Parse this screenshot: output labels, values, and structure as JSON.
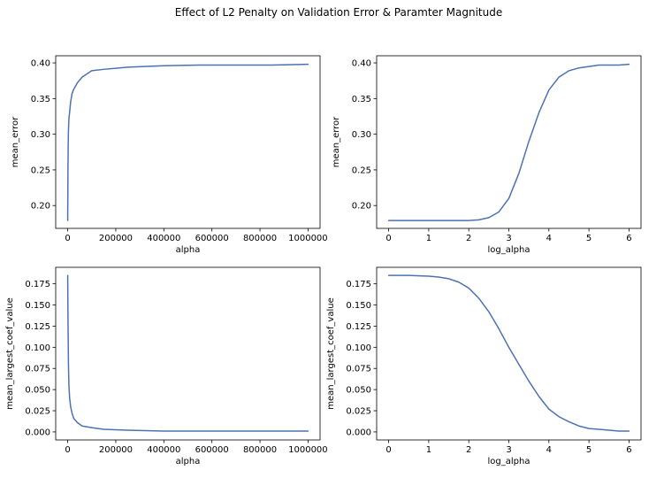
{
  "figure": {
    "suptitle": "Effect of L2 Penalty on Validation Error & Paramter Magnitude"
  },
  "chart_data": [
    {
      "type": "line",
      "xlabel": "alpha",
      "ylabel": "mean_error",
      "xlim": [
        -50000,
        1050000
      ],
      "ylim": [
        0.168,
        0.41
      ],
      "xticks": [
        0,
        200000,
        400000,
        600000,
        800000,
        1000000
      ],
      "xticklabels": [
        "0",
        "200000",
        "400000",
        "600000",
        "800000",
        "1000000"
      ],
      "yticks": [
        0.2,
        0.25,
        0.3,
        0.35,
        0.4
      ],
      "yticklabels": [
        "0.20",
        "0.25",
        "0.30",
        "0.35",
        "0.40"
      ],
      "grid": false,
      "series": [
        {
          "color": "#4c72b0",
          "x": [
            1,
            1000,
            2000,
            3000,
            5000,
            8000,
            12000,
            18000,
            25000,
            40000,
            60000,
            100000,
            150000,
            250000,
            400000,
            550000,
            700000,
            850000,
            1000000
          ],
          "y": [
            0.179,
            0.25,
            0.285,
            0.305,
            0.322,
            0.331,
            0.345,
            0.357,
            0.363,
            0.372,
            0.38,
            0.389,
            0.391,
            0.394,
            0.396,
            0.397,
            0.397,
            0.397,
            0.398
          ]
        }
      ]
    },
    {
      "type": "line",
      "xlabel": "log_alpha",
      "ylabel": "mean_error",
      "xlim": [
        -0.3,
        6.3
      ],
      "ylim": [
        0.168,
        0.41
      ],
      "xticks": [
        0,
        1,
        2,
        3,
        4,
        5,
        6
      ],
      "xticklabels": [
        "0",
        "1",
        "2",
        "3",
        "4",
        "5",
        "6"
      ],
      "yticks": [
        0.2,
        0.25,
        0.3,
        0.35,
        0.4
      ],
      "yticklabels": [
        "0.20",
        "0.25",
        "0.30",
        "0.35",
        "0.40"
      ],
      "grid": false,
      "series": [
        {
          "color": "#4c72b0",
          "x": [
            0,
            0.5,
            1.0,
            1.5,
            2.0,
            2.25,
            2.5,
            2.75,
            3.0,
            3.25,
            3.5,
            3.75,
            4.0,
            4.25,
            4.5,
            4.75,
            5.0,
            5.25,
            5.5,
            5.75,
            6.0
          ],
          "y": [
            0.179,
            0.179,
            0.179,
            0.179,
            0.179,
            0.18,
            0.183,
            0.191,
            0.21,
            0.245,
            0.29,
            0.33,
            0.362,
            0.38,
            0.389,
            0.393,
            0.395,
            0.397,
            0.397,
            0.397,
            0.398
          ]
        }
      ]
    },
    {
      "type": "line",
      "xlabel": "alpha",
      "ylabel": "mean_largest_coef_value",
      "xlim": [
        -50000,
        1050000
      ],
      "ylim": [
        -0.0095,
        0.1945
      ],
      "xticks": [
        0,
        200000,
        400000,
        600000,
        800000,
        1000000
      ],
      "xticklabels": [
        "0",
        "200000",
        "400000",
        "600000",
        "800000",
        "1000000"
      ],
      "yticks": [
        0.0,
        0.025,
        0.05,
        0.075,
        0.1,
        0.125,
        0.15,
        0.175
      ],
      "yticklabels": [
        "0.000",
        "0.025",
        "0.050",
        "0.075",
        "0.100",
        "0.125",
        "0.150",
        "0.175"
      ],
      "grid": false,
      "series": [
        {
          "color": "#4c72b0",
          "x": [
            1,
            1000,
            2000,
            3000,
            5000,
            8000,
            12000,
            18000,
            25000,
            40000,
            60000,
            100000,
            150000,
            250000,
            400000,
            550000,
            700000,
            850000,
            1000000
          ],
          "y": [
            0.185,
            0.14,
            0.11,
            0.08,
            0.055,
            0.04,
            0.03,
            0.022,
            0.016,
            0.011,
            0.007,
            0.005,
            0.003,
            0.002,
            0.001,
            0.001,
            0.001,
            0.001,
            0.001
          ]
        }
      ]
    },
    {
      "type": "line",
      "xlabel": "log_alpha",
      "ylabel": "mean_largest_coef_value",
      "xlim": [
        -0.3,
        6.3
      ],
      "ylim": [
        -0.0095,
        0.1945
      ],
      "xticks": [
        0,
        1,
        2,
        3,
        4,
        5,
        6
      ],
      "xticklabels": [
        "0",
        "1",
        "2",
        "3",
        "4",
        "5",
        "6"
      ],
      "yticks": [
        0.0,
        0.025,
        0.05,
        0.075,
        0.1,
        0.125,
        0.15,
        0.175
      ],
      "yticklabels": [
        "0.000",
        "0.025",
        "0.050",
        "0.075",
        "0.100",
        "0.125",
        "0.150",
        "0.175"
      ],
      "grid": false,
      "series": [
        {
          "color": "#4c72b0",
          "x": [
            0,
            0.5,
            1.0,
            1.25,
            1.5,
            1.75,
            2.0,
            2.25,
            2.5,
            2.75,
            3.0,
            3.25,
            3.5,
            3.75,
            4.0,
            4.25,
            4.5,
            4.75,
            5.0,
            5.25,
            5.5,
            5.75,
            6.0
          ],
          "y": [
            0.185,
            0.185,
            0.184,
            0.183,
            0.181,
            0.177,
            0.17,
            0.158,
            0.142,
            0.122,
            0.1,
            0.08,
            0.06,
            0.042,
            0.027,
            0.018,
            0.012,
            0.007,
            0.004,
            0.003,
            0.002,
            0.001,
            0.001
          ]
        }
      ]
    }
  ]
}
